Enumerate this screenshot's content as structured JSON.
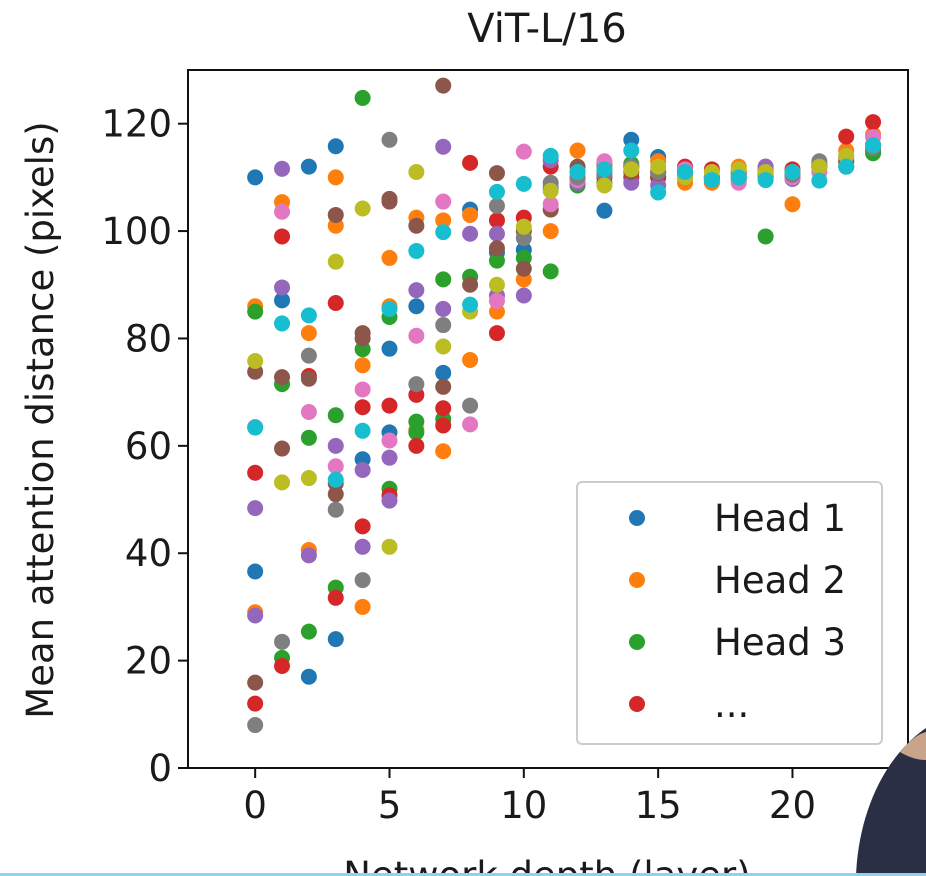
{
  "chart_data": {
    "type": "scatter",
    "title": "ViT-L/16",
    "xlabel": "Network depth (layer)",
    "ylabel": "Mean attention distance (pixels)",
    "xlim": [
      -2.5,
      24.3
    ],
    "ylim": [
      0,
      130
    ],
    "xticks": [
      0,
      5,
      10,
      15,
      20
    ],
    "yticks": [
      0,
      20,
      40,
      60,
      80,
      100,
      120
    ],
    "grid": false,
    "legend_position": "bottom-right",
    "legend": [
      {
        "label": "Head 1",
        "color": "#1f77b4"
      },
      {
        "label": "Head 2",
        "color": "#ff7f0e"
      },
      {
        "label": "Head 3",
        "color": "#2ca02c"
      },
      {
        "label": "...",
        "color": "#d62728"
      }
    ],
    "series": [
      {
        "color": "#1f77b4",
        "points": [
          [
            0,
            110
          ],
          [
            0,
            36.6
          ],
          [
            1,
            87.1
          ],
          [
            2,
            112
          ],
          [
            2,
            17
          ],
          [
            3,
            115.8
          ],
          [
            3,
            24
          ],
          [
            4,
            57.5
          ],
          [
            5,
            78.1
          ],
          [
            5,
            62.5
          ],
          [
            6,
            86
          ],
          [
            7,
            73.6
          ],
          [
            8,
            104
          ],
          [
            9,
            96
          ],
          [
            10,
            96.5
          ],
          [
            11,
            108
          ],
          [
            12,
            110
          ],
          [
            13,
            103.8
          ],
          [
            14,
            117
          ],
          [
            15,
            113.8
          ],
          [
            16,
            111
          ],
          [
            17,
            110
          ],
          [
            18,
            111
          ],
          [
            19,
            110
          ],
          [
            20,
            110
          ],
          [
            21,
            112
          ],
          [
            22,
            112
          ],
          [
            23,
            115
          ]
        ]
      },
      {
        "color": "#ff7f0e",
        "points": [
          [
            0,
            86
          ],
          [
            0,
            29
          ],
          [
            1,
            105.4
          ],
          [
            2,
            81
          ],
          [
            2,
            40.6
          ],
          [
            3,
            110
          ],
          [
            3,
            101
          ],
          [
            4,
            75
          ],
          [
            4,
            30
          ],
          [
            5,
            95
          ],
          [
            5,
            86
          ],
          [
            6,
            102.5
          ],
          [
            6,
            63
          ],
          [
            7,
            102
          ],
          [
            7,
            59
          ],
          [
            8,
            103
          ],
          [
            8,
            76
          ],
          [
            9,
            85
          ],
          [
            10,
            91
          ],
          [
            11,
            100
          ],
          [
            12,
            115
          ],
          [
            13,
            112
          ],
          [
            14,
            112
          ],
          [
            15,
            113
          ],
          [
            16,
            109
          ],
          [
            17,
            109
          ],
          [
            18,
            112
          ],
          [
            19,
            112
          ],
          [
            20,
            105
          ],
          [
            21,
            112
          ],
          [
            22,
            115
          ],
          [
            23,
            118
          ]
        ]
      },
      {
        "color": "#2ca02c",
        "points": [
          [
            0,
            85
          ],
          [
            1,
            71.5
          ],
          [
            1,
            20.5
          ],
          [
            2,
            61.5
          ],
          [
            2,
            25.4
          ],
          [
            3,
            65.7
          ],
          [
            3,
            33.6
          ],
          [
            4,
            124.8
          ],
          [
            4,
            78
          ],
          [
            5,
            84
          ],
          [
            5,
            52
          ],
          [
            6,
            62.5
          ],
          [
            6,
            64.5
          ],
          [
            7,
            91
          ],
          [
            7,
            65
          ],
          [
            8,
            91.5
          ],
          [
            9,
            94.5
          ],
          [
            10,
            95
          ],
          [
            11,
            92.5
          ],
          [
            12,
            108.5
          ],
          [
            13,
            109
          ],
          [
            14,
            112.5
          ],
          [
            15,
            110
          ],
          [
            16,
            110
          ],
          [
            17,
            109.5
          ],
          [
            18,
            110
          ],
          [
            19,
            99
          ],
          [
            19,
            111
          ],
          [
            20,
            111
          ],
          [
            21,
            112
          ],
          [
            22,
            113
          ],
          [
            23,
            114.5
          ]
        ]
      },
      {
        "color": "#d62728",
        "points": [
          [
            0,
            55
          ],
          [
            0,
            12
          ],
          [
            1,
            99
          ],
          [
            1,
            19
          ],
          [
            2,
            73
          ],
          [
            3,
            86.6
          ],
          [
            3,
            31.7
          ],
          [
            4,
            67.2
          ],
          [
            4,
            45
          ],
          [
            5,
            67.5
          ],
          [
            5,
            50.8
          ],
          [
            6,
            69.5
          ],
          [
            6,
            60
          ],
          [
            7,
            67
          ],
          [
            7,
            63.8
          ],
          [
            8,
            112.7
          ],
          [
            9,
            81
          ],
          [
            9,
            102
          ],
          [
            10,
            102.5
          ],
          [
            11,
            112
          ],
          [
            12,
            111
          ],
          [
            13,
            110
          ],
          [
            14,
            110
          ],
          [
            15,
            110
          ],
          [
            16,
            112
          ],
          [
            17,
            111.5
          ],
          [
            18,
            111
          ],
          [
            19,
            111.5
          ],
          [
            20,
            111.5
          ],
          [
            21,
            112
          ],
          [
            22,
            117.6
          ],
          [
            23,
            120.3
          ]
        ]
      },
      {
        "color": "#9467bd",
        "points": [
          [
            0,
            48.4
          ],
          [
            0,
            28.4
          ],
          [
            1,
            111.6
          ],
          [
            1,
            89.5
          ],
          [
            2,
            39.6
          ],
          [
            3,
            60
          ],
          [
            4,
            41.2
          ],
          [
            4,
            55.5
          ],
          [
            5,
            57.8
          ],
          [
            5,
            49.8
          ],
          [
            6,
            89
          ],
          [
            7,
            115.7
          ],
          [
            7,
            85.5
          ],
          [
            8,
            99.5
          ],
          [
            9,
            99.5
          ],
          [
            9,
            88
          ],
          [
            10,
            88
          ],
          [
            11,
            113.2
          ],
          [
            12,
            109
          ],
          [
            13,
            111
          ],
          [
            14,
            109
          ],
          [
            15,
            108.5
          ],
          [
            16,
            110
          ],
          [
            17,
            110
          ],
          [
            18,
            109.5
          ],
          [
            19,
            112
          ],
          [
            20,
            109.7
          ],
          [
            21,
            112
          ],
          [
            22,
            113.5
          ],
          [
            23,
            116
          ]
        ]
      },
      {
        "color": "#8c564b",
        "points": [
          [
            0,
            73.8
          ],
          [
            0,
            15.9
          ],
          [
            1,
            72.8
          ],
          [
            1,
            59.5
          ],
          [
            2,
            72.5
          ],
          [
            3,
            103
          ],
          [
            3,
            51
          ],
          [
            3,
            53
          ],
          [
            4,
            80
          ],
          [
            4,
            81
          ],
          [
            5,
            106
          ],
          [
            5,
            105.5
          ],
          [
            6,
            101
          ],
          [
            7,
            127.1
          ],
          [
            7,
            71
          ],
          [
            8,
            90
          ],
          [
            9,
            110.8
          ],
          [
            9,
            96.8
          ],
          [
            10,
            100
          ],
          [
            10,
            93
          ],
          [
            11,
            104
          ],
          [
            12,
            112
          ],
          [
            13,
            112.5
          ],
          [
            14,
            111
          ],
          [
            15,
            110.8
          ],
          [
            16,
            110
          ],
          [
            17,
            110
          ],
          [
            18,
            110.5
          ],
          [
            19,
            110.5
          ],
          [
            20,
            110.5
          ],
          [
            21,
            112.5
          ],
          [
            22,
            112.8
          ],
          [
            23,
            116
          ]
        ]
      },
      {
        "color": "#e377c2",
        "points": [
          [
            0,
            63.5
          ],
          [
            1,
            103.6
          ],
          [
            2,
            66.3
          ],
          [
            3,
            56.2
          ],
          [
            4,
            70.5
          ],
          [
            5,
            61
          ],
          [
            6,
            80.5
          ],
          [
            7,
            105.5
          ],
          [
            8,
            64
          ],
          [
            9,
            87
          ],
          [
            10,
            114.8
          ],
          [
            11,
            105
          ],
          [
            12,
            109.5
          ],
          [
            13,
            113
          ],
          [
            14,
            112
          ],
          [
            15,
            111
          ],
          [
            16,
            111.5
          ],
          [
            17,
            110
          ],
          [
            18,
            109
          ],
          [
            19,
            110
          ],
          [
            20,
            110
          ],
          [
            21,
            111
          ],
          [
            22,
            114
          ],
          [
            23,
            117.5
          ]
        ]
      },
      {
        "color": "#7f7f7f",
        "points": [
          [
            0,
            8
          ],
          [
            1,
            23.5
          ],
          [
            2,
            76.8
          ],
          [
            3,
            48.1
          ],
          [
            4,
            35
          ],
          [
            5,
            117
          ],
          [
            6,
            71.5
          ],
          [
            7,
            82.5
          ],
          [
            8,
            67.5
          ],
          [
            9,
            104.7
          ],
          [
            10,
            98.7
          ],
          [
            11,
            109
          ],
          [
            12,
            110
          ],
          [
            13,
            110.5
          ],
          [
            14,
            112
          ],
          [
            15,
            111
          ],
          [
            16,
            110.5
          ],
          [
            17,
            110
          ],
          [
            18,
            110
          ],
          [
            19,
            110.5
          ],
          [
            20,
            110.5
          ],
          [
            21,
            113
          ],
          [
            22,
            112
          ],
          [
            23,
            115.5
          ]
        ]
      },
      {
        "color": "#bcbd22",
        "points": [
          [
            0,
            75.8
          ],
          [
            1,
            53.2
          ],
          [
            2,
            54
          ],
          [
            3,
            94.3
          ],
          [
            4,
            104.2
          ],
          [
            5,
            41.2
          ],
          [
            6,
            111
          ],
          [
            7,
            78.5
          ],
          [
            8,
            85
          ],
          [
            9,
            90
          ],
          [
            10,
            100.8
          ],
          [
            11,
            107.5
          ],
          [
            12,
            111
          ],
          [
            13,
            108.5
          ],
          [
            14,
            111.5
          ],
          [
            15,
            112
          ],
          [
            16,
            110
          ],
          [
            17,
            111
          ],
          [
            18,
            111.5
          ],
          [
            19,
            111
          ],
          [
            20,
            111
          ],
          [
            21,
            112
          ],
          [
            22,
            114
          ],
          [
            23,
            116
          ]
        ]
      },
      {
        "color": "#17becf",
        "points": [
          [
            0,
            63.4
          ],
          [
            1,
            82.8
          ],
          [
            2,
            84.3
          ],
          [
            3,
            53.7
          ],
          [
            4,
            62.8
          ],
          [
            5,
            85.5
          ],
          [
            6,
            96.3
          ],
          [
            7,
            99.8
          ],
          [
            8,
            86.3
          ],
          [
            9,
            107.3
          ],
          [
            10,
            108.8
          ],
          [
            11,
            114
          ],
          [
            12,
            111
          ],
          [
            13,
            111.5
          ],
          [
            14,
            115
          ],
          [
            15,
            107.2
          ],
          [
            16,
            111
          ],
          [
            17,
            109.5
          ],
          [
            18,
            110
          ],
          [
            19,
            109.5
          ],
          [
            20,
            111
          ],
          [
            21,
            109.4
          ],
          [
            22,
            112
          ],
          [
            23,
            116
          ]
        ]
      }
    ]
  }
}
